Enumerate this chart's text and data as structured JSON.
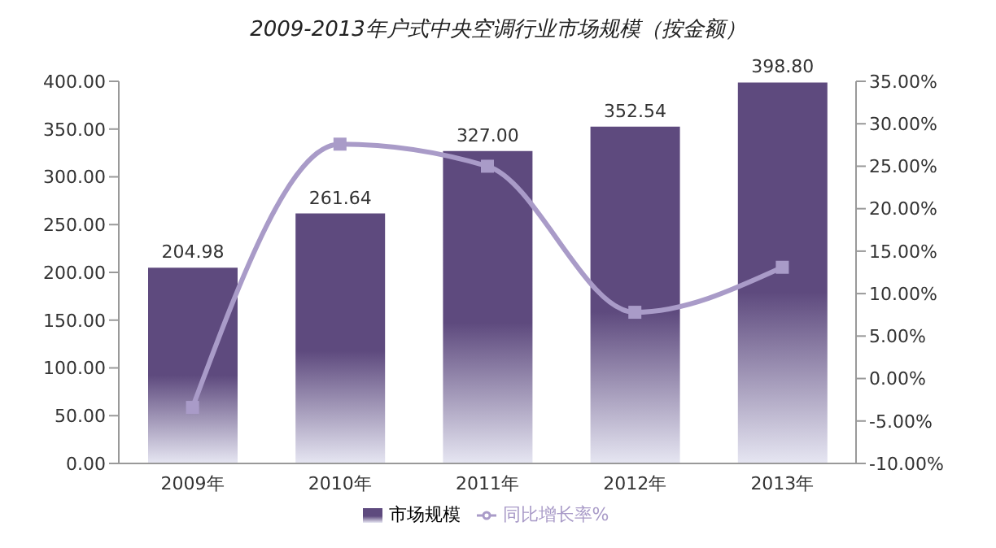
{
  "chart_data": {
    "type": "bar",
    "title": "2009-2013年户式中央空调行业市场规模（按金额）",
    "categories": [
      "2009年",
      "2010年",
      "2011年",
      "2012年",
      "2013年"
    ],
    "series": [
      {
        "name": "市场规模",
        "color": "#5e4a7e",
        "values": [
          204.98,
          261.64,
          327.0,
          352.54,
          398.8
        ],
        "value_labels": [
          "204.98",
          "261.64",
          "327.00",
          "352.54",
          "398.80"
        ]
      },
      {
        "name": "同比增长率%",
        "type": "line",
        "axis": "y2",
        "color": "#a99bc8",
        "marker": "square",
        "values": [
          -3.4,
          27.6,
          25.0,
          7.8,
          13.1
        ]
      }
    ],
    "ylim": [
      0,
      400
    ],
    "yticks": [
      {
        "value": 0,
        "label": "0.00"
      },
      {
        "value": 50,
        "label": "50.00"
      },
      {
        "value": 100,
        "label": "100.00"
      },
      {
        "value": 150,
        "label": "150.00"
      },
      {
        "value": 200,
        "label": "200.00"
      },
      {
        "value": 250,
        "label": "250.00"
      },
      {
        "value": 300,
        "label": "300.00"
      },
      {
        "value": 350,
        "label": "350.00"
      },
      {
        "value": 400,
        "label": "400.00"
      }
    ],
    "y2lim": [
      -10,
      35
    ],
    "y2ticks": [
      {
        "value": -10,
        "label": "-10.00%"
      },
      {
        "value": -5,
        "label": "-5.00%"
      },
      {
        "value": 0,
        "label": "0.00%"
      },
      {
        "value": 5,
        "label": "5.00%"
      },
      {
        "value": 10,
        "label": "10.00%"
      },
      {
        "value": 15,
        "label": "15.00%"
      },
      {
        "value": 20,
        "label": "20.00%"
      },
      {
        "value": 25,
        "label": "25.00%"
      },
      {
        "value": 30,
        "label": "30.00%"
      },
      {
        "value": 35,
        "label": "35.00%"
      }
    ],
    "legend": "bottom",
    "grid": false
  }
}
